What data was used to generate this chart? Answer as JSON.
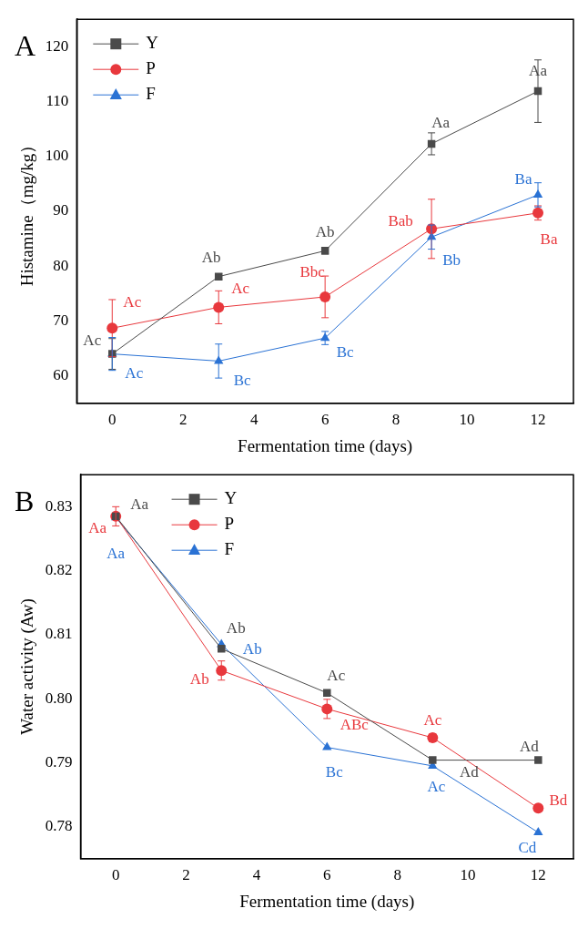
{
  "chart_data": [
    {
      "type": "line",
      "title": "A",
      "xlabel": "Fermentation time (days)",
      "ylabel": "Histamine（mg/kg）",
      "x": [
        0,
        3,
        6,
        9,
        12
      ],
      "xlim": [
        -1,
        13
      ],
      "xticks": [
        0,
        2,
        4,
        6,
        8,
        10,
        12
      ],
      "ylim": [
        55,
        125
      ],
      "yticks": [
        60,
        70,
        80,
        90,
        100,
        110,
        120
      ],
      "grid": false,
      "legend": "top left",
      "line_style": "solid",
      "series": [
        {
          "name": "Y",
          "color": "#4a4a4a",
          "marker": "square",
          "values": [
            64.0,
            78.1,
            82.8,
            102.3,
            111.9
          ],
          "errors": [
            2.8,
            0.5,
            0.6,
            2,
            5.7
          ],
          "value_labels": [
            "Ac",
            "Ab",
            "Ab",
            "Aa",
            "Aa"
          ]
        },
        {
          "name": "P",
          "color": "#e8383d",
          "marker": "circle",
          "values": [
            68.7,
            72.5,
            74.4,
            86.8,
            89.7
          ],
          "errors": [
            5.2,
            3,
            3.8,
            5.4,
            1.3
          ],
          "value_labels": [
            "Ac",
            "Ac",
            "Bbc",
            "Bab",
            "Ba"
          ]
        },
        {
          "name": "F",
          "color": "#2a72d4",
          "marker": "triangle",
          "values": [
            64.0,
            62.7,
            66.9,
            85.3,
            93.0
          ],
          "errors": [
            3,
            3.1,
            1.2,
            2.2,
            2.2
          ],
          "value_labels": [
            "Ac",
            "Bc",
            "Bc",
            "Bb",
            "Ba"
          ]
        }
      ]
    },
    {
      "type": "line",
      "title": "B",
      "xlabel": "Fermentation time (days)",
      "ylabel": "Water activity (Aw)",
      "x": [
        0,
        3,
        6,
        9,
        12
      ],
      "xlim": [
        -1,
        13
      ],
      "xticks": [
        0,
        2,
        4,
        6,
        8,
        10,
        12
      ],
      "ylim": [
        0.775,
        0.835
      ],
      "yticks": [
        0.78,
        0.79,
        {
          "value": 0.8,
          "label": "0.80"
        },
        0.81,
        0.82,
        0.83
      ],
      "grid": false,
      "legend": "top left",
      "line_style": "solid",
      "series": [
        {
          "name": "Y",
          "color": "#4a4a4a",
          "marker": "square",
          "values": [
            0.8285,
            0.8078,
            0.8009,
            0.7904,
            0.7904
          ],
          "value_labels": [
            "Aa",
            "Ab",
            "Ac",
            "Ad",
            "Ad"
          ]
        },
        {
          "name": "P",
          "color": "#e8383d",
          "marker": "circle",
          "values": [
            0.8285,
            0.8044,
            0.7984,
            0.7939,
            0.7829
          ],
          "errors": [
            0.0015,
            0.0015,
            0.0015,
            0.0006,
            null
          ],
          "value_labels": [
            "Aa",
            "Ab",
            "ABc",
            "Ac",
            "Bd"
          ]
        },
        {
          "name": "F",
          "color": "#2a72d4",
          "marker": "triangle",
          "values": [
            0.8283,
            0.8085,
            0.7924,
            0.7895,
            0.7791
          ],
          "value_labels": [
            "Aa",
            "Ab",
            "Bc",
            "Ac",
            "Cd"
          ]
        }
      ]
    }
  ]
}
